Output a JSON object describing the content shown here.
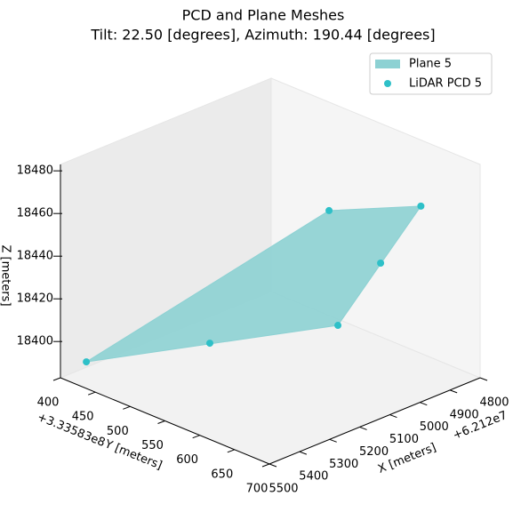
{
  "chart_data": {
    "type": "scatter3d",
    "title": "PCD and Plane Meshes",
    "subtitle": "Tilt: 22.50 [degrees], Azimuth: 190.44 [degrees]",
    "xlabel": "X [meters]",
    "ylabel": "Y [meters]",
    "zlabel": "Z [meters]",
    "xoffset": "+6.212e7",
    "yoffset": "+3.33583e8",
    "xlim": [
      4800,
      5500
    ],
    "ylim": [
      400,
      700
    ],
    "zlim": [
      18383,
      18483
    ],
    "xticks": [
      4800,
      4900,
      5000,
      5100,
      5200,
      5300,
      5400,
      5500
    ],
    "yticks": [
      400,
      450,
      500,
      550,
      600,
      650,
      700
    ],
    "zticks": [
      18400,
      18420,
      18440,
      18460,
      18480
    ],
    "legend": "upper right",
    "series": [
      {
        "name": "Plane 5",
        "kind": "plane",
        "color": "#8dd1d3",
        "x": [
          5458,
          5203,
          4962,
          4816
        ],
        "y": [
          419,
          670,
          685,
          490
        ],
        "z": [
          18390.6,
          18426.8,
          18470.8,
          18434
        ]
      },
      {
        "name": "LiDAR PCD 5",
        "kind": "points",
        "color": "#2ec0c8",
        "x": [
          5458,
          5337,
          5203,
          5075,
          4962,
          4816
        ],
        "y": [
          419,
          544,
          670,
          676,
          685,
          490
        ],
        "z": [
          18390.6,
          18409.2,
          18426.8,
          18449.4,
          18470.8,
          18434
        ]
      }
    ]
  }
}
